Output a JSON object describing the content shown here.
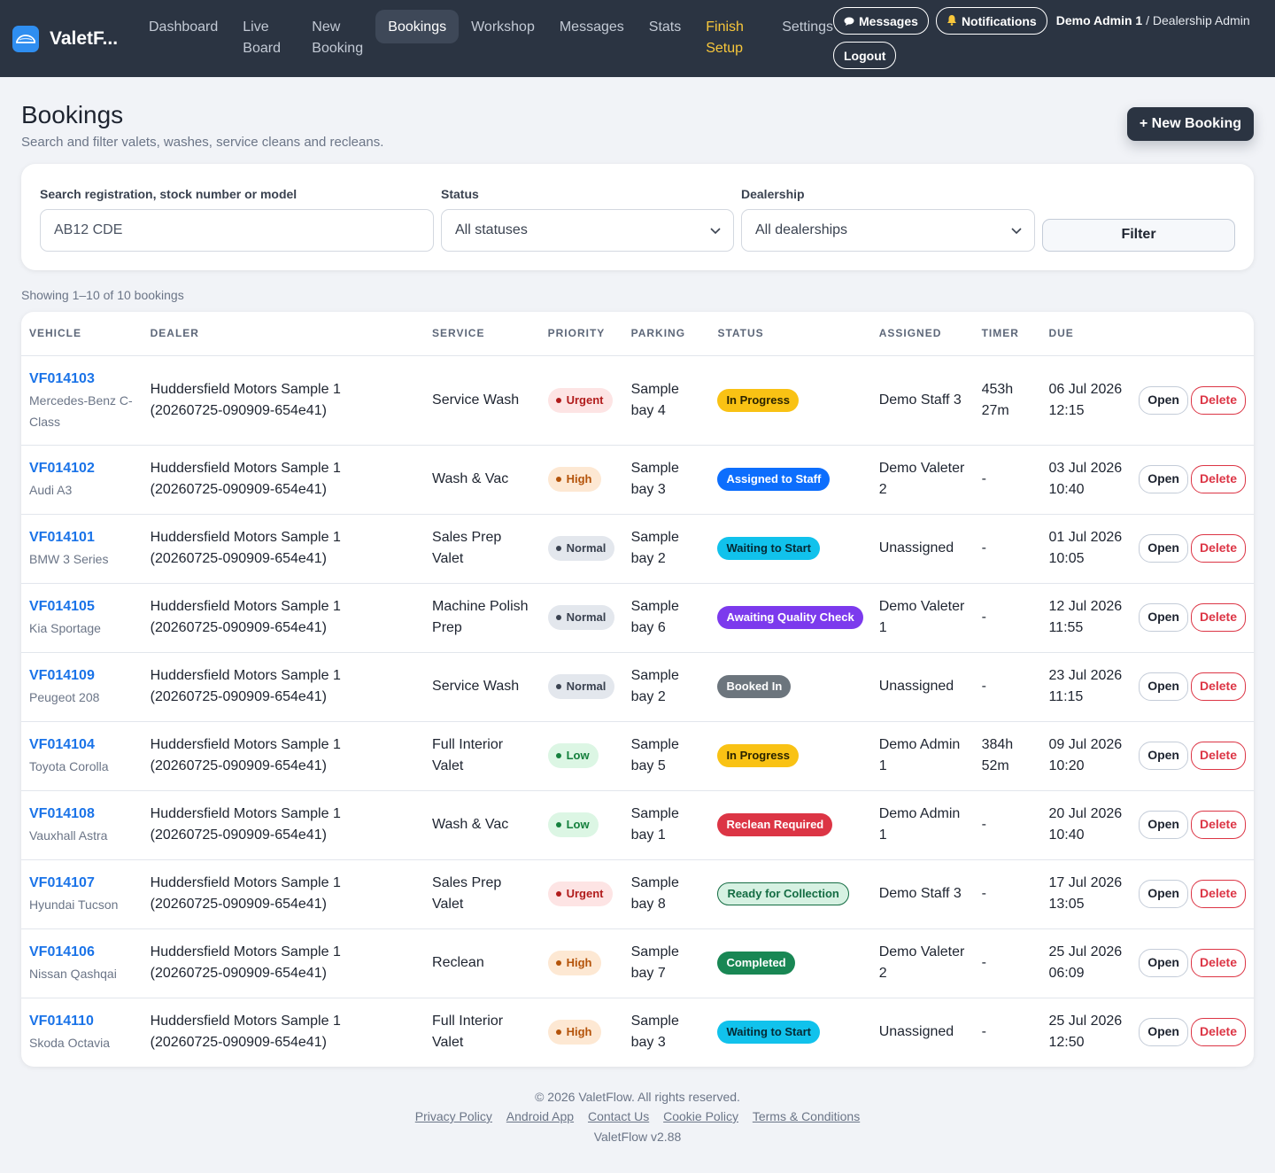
{
  "brand": {
    "name": "ValetF...",
    "logo_icon": "car-icon"
  },
  "nav": [
    {
      "label": "Dashboard"
    },
    {
      "label": "Live Board"
    },
    {
      "label": "New Booking"
    },
    {
      "label": "Bookings"
    },
    {
      "label": "Workshop"
    },
    {
      "label": "Messages"
    },
    {
      "label": "Stats"
    },
    {
      "label": "Finish Setup"
    },
    {
      "label": "Settings"
    }
  ],
  "header": {
    "messages_label": "Messages",
    "notifications_label": "Notifications",
    "user_name": "Demo Admin 1",
    "user_role": "/ Dealership Admin",
    "logout_label": "Logout"
  },
  "page": {
    "title": "Bookings",
    "subtitle": "Search and filter valets, washes, service cleans and recleans.",
    "new_booking_label": "+ New Booking"
  },
  "filters": {
    "search_label": "Search registration, stock number or model",
    "search_placeholder": "AB12 CDE",
    "status_label": "Status",
    "status_value": "All statuses",
    "dealership_label": "Dealership",
    "dealership_value": "All dealerships",
    "filter_button": "Filter"
  },
  "showing": "Showing 1–10 of 10 bookings",
  "table": {
    "headers": [
      "VEHICLE",
      "DEALER",
      "SERVICE",
      "PRIORITY",
      "PARKING",
      "STATUS",
      "ASSIGNED",
      "TIMER",
      "DUE"
    ],
    "open_label": "Open",
    "delete_label": "Delete",
    "rows": [
      {
        "plate": "VF014103",
        "model": "Mercedes-Benz C-Class",
        "dealer": "Huddersfield Motors Sample 1 (20260725-090909-654e41)",
        "service": "Service Wash",
        "priority": "Urgent",
        "parking": "Sample bay 4",
        "status": "In Progress",
        "assigned": "Demo Staff 3",
        "timer": "453h 27m",
        "due": "06 Jul 2026 12:15"
      },
      {
        "plate": "VF014102",
        "model": "Audi A3",
        "dealer": "Huddersfield Motors Sample 1 (20260725-090909-654e41)",
        "service": "Wash & Vac",
        "priority": "High",
        "parking": "Sample bay 3",
        "status": "Assigned to Staff",
        "assigned": "Demo Valeter 2",
        "timer": "-",
        "due": "03 Jul 2026 10:40"
      },
      {
        "plate": "VF014101",
        "model": "BMW 3 Series",
        "dealer": "Huddersfield Motors Sample 1 (20260725-090909-654e41)",
        "service": "Sales Prep Valet",
        "priority": "Normal",
        "parking": "Sample bay 2",
        "status": "Waiting to Start",
        "assigned": "Unassigned",
        "timer": "-",
        "due": "01 Jul 2026 10:05"
      },
      {
        "plate": "VF014105",
        "model": "Kia Sportage",
        "dealer": "Huddersfield Motors Sample 1 (20260725-090909-654e41)",
        "service": "Machine Polish Prep",
        "priority": "Normal",
        "parking": "Sample bay 6",
        "status": "Awaiting Quality Check",
        "assigned": "Demo Valeter 1",
        "timer": "-",
        "due": "12 Jul 2026 11:55"
      },
      {
        "plate": "VF014109",
        "model": "Peugeot 208",
        "dealer": "Huddersfield Motors Sample 1 (20260725-090909-654e41)",
        "service": "Service Wash",
        "priority": "Normal",
        "parking": "Sample bay 2",
        "status": "Booked In",
        "assigned": "Unassigned",
        "timer": "-",
        "due": "23 Jul 2026 11:15"
      },
      {
        "plate": "VF014104",
        "model": "Toyota Corolla",
        "dealer": "Huddersfield Motors Sample 1 (20260725-090909-654e41)",
        "service": "Full Interior Valet",
        "priority": "Low",
        "parking": "Sample bay 5",
        "status": "In Progress",
        "assigned": "Demo Admin 1",
        "timer": "384h 52m",
        "due": "09 Jul 2026 10:20"
      },
      {
        "plate": "VF014108",
        "model": "Vauxhall Astra",
        "dealer": "Huddersfield Motors Sample 1 (20260725-090909-654e41)",
        "service": "Wash & Vac",
        "priority": "Low",
        "parking": "Sample bay 1",
        "status": "Reclean Required",
        "assigned": "Demo Admin 1",
        "timer": "-",
        "due": "20 Jul 2026 10:40"
      },
      {
        "plate": "VF014107",
        "model": "Hyundai Tucson",
        "dealer": "Huddersfield Motors Sample 1 (20260725-090909-654e41)",
        "service": "Sales Prep Valet",
        "priority": "Urgent",
        "parking": "Sample bay 8",
        "status": "Ready for Collection",
        "assigned": "Demo Staff 3",
        "timer": "-",
        "due": "17 Jul 2026 13:05"
      },
      {
        "plate": "VF014106",
        "model": "Nissan Qashqai",
        "dealer": "Huddersfield Motors Sample 1 (20260725-090909-654e41)",
        "service": "Reclean",
        "priority": "High",
        "parking": "Sample bay 7",
        "status": "Completed",
        "assigned": "Demo Valeter 2",
        "timer": "-",
        "due": "25 Jul 2026 06:09"
      },
      {
        "plate": "VF014110",
        "model": "Skoda Octavia",
        "dealer": "Huddersfield Motors Sample 1 (20260725-090909-654e41)",
        "service": "Full Interior Valet",
        "priority": "High",
        "parking": "Sample bay 3",
        "status": "Waiting to Start",
        "assigned": "Unassigned",
        "timer": "-",
        "due": "25 Jul 2026 12:50"
      }
    ]
  },
  "footer": {
    "copyright": "© 2026 ValetFlow. All rights reserved.",
    "links": [
      "Privacy Policy",
      "Android App",
      "Contact Us",
      "Cookie Policy",
      "Terms & Conditions"
    ],
    "version": "ValetFlow v2.88"
  },
  "colors": {
    "nav_bg": "#2b3442",
    "link_blue": "#1a73e8",
    "finish_yellow": "#f8c73b",
    "danger": "#dc3545"
  }
}
